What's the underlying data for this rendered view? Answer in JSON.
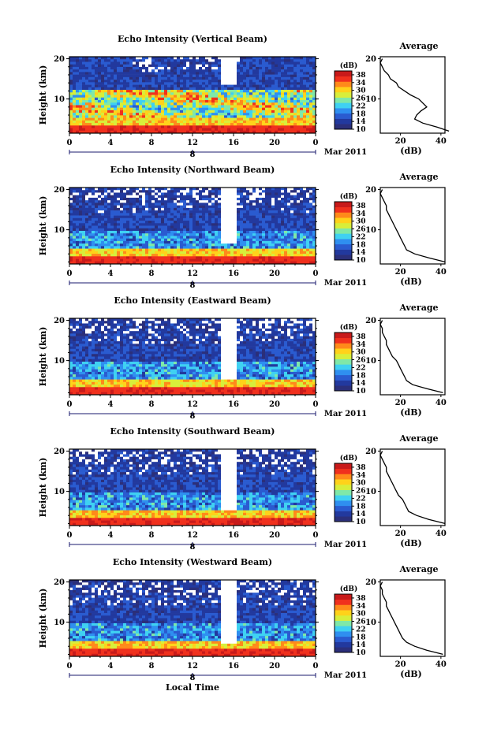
{
  "colors": {
    "colormap": [
      "#2b2f7a",
      "#22399e",
      "#2a5bd0",
      "#2f8ff0",
      "#3fd1f2",
      "#7fe8a8",
      "#d8ee3a",
      "#ffd21a",
      "#ff8a1a",
      "#f0301d",
      "#c81a1a"
    ],
    "missing": "#ffffff"
  },
  "chart_data": [
    {
      "type": "heatmap",
      "title": "Echo Intensity (Vertical Beam)",
      "ylabel": "Height (km)",
      "x_ticks": [
        "0",
        "4",
        "8",
        "12",
        "16",
        "20",
        "0"
      ],
      "xlim": [
        0,
        24
      ],
      "y_ticks": [
        "10",
        "20"
      ],
      "ylim": [
        1.5,
        20.5
      ],
      "date_tick": "8",
      "date_label": "Mar 2011",
      "colorbar": {
        "unit": "(dB)",
        "ticks": [
          "10",
          "14",
          "18",
          "22",
          "26",
          "30",
          "34",
          "38"
        ],
        "range": [
          10,
          40
        ]
      },
      "gap": {
        "x": [
          14.8,
          16.2
        ],
        "above": 13.5
      },
      "average": {
        "title": "Average",
        "xlabel": "(dB)",
        "x_ticks": [
          "20",
          "40"
        ],
        "xlim": [
          10,
          42
        ],
        "y_ticks": [
          "10",
          "20"
        ],
        "ylim": [
          1.5,
          20.5
        ],
        "points": [
          [
            44,
            2
          ],
          [
            38,
            3
          ],
          [
            31,
            4
          ],
          [
            27,
            5
          ],
          [
            28,
            6
          ],
          [
            30,
            7
          ],
          [
            33,
            8
          ],
          [
            31,
            9
          ],
          [
            29,
            10
          ],
          [
            25,
            11
          ],
          [
            22,
            12
          ],
          [
            19,
            13
          ],
          [
            18,
            14
          ],
          [
            15,
            15
          ],
          [
            14,
            16
          ],
          [
            12,
            17
          ],
          [
            11,
            18
          ],
          [
            10,
            19
          ],
          [
            11,
            20
          ]
        ]
      }
    },
    {
      "type": "heatmap",
      "title": "Echo Intensity (Northward Beam)",
      "ylabel": "Height (km)",
      "x_ticks": [
        "0",
        "4",
        "8",
        "12",
        "16",
        "20",
        "0"
      ],
      "xlim": [
        0,
        24
      ],
      "y_ticks": [
        "10",
        "20"
      ],
      "ylim": [
        1.5,
        20.5
      ],
      "date_tick": "8",
      "date_label": "Mar 2011",
      "colorbar": {
        "unit": "(dB)",
        "ticks": [
          "10",
          "14",
          "18",
          "22",
          "26",
          "30",
          "34",
          "38"
        ],
        "range": [
          10,
          40
        ]
      },
      "gap": {
        "x": [
          14.8,
          16.3
        ],
        "above": 6.5
      },
      "average": {
        "title": "Average",
        "xlabel": "(dB)",
        "x_ticks": [
          "20",
          "40"
        ],
        "xlim": [
          10,
          42
        ],
        "y_ticks": [
          "10",
          "20"
        ],
        "ylim": [
          1.5,
          20.5
        ],
        "points": [
          [
            42,
            2
          ],
          [
            34,
            3
          ],
          [
            27,
            4
          ],
          [
            23,
            5
          ],
          [
            22,
            6
          ],
          [
            21,
            7
          ],
          [
            20,
            8
          ],
          [
            19,
            9
          ],
          [
            18,
            10
          ],
          [
            17,
            11
          ],
          [
            16,
            12
          ],
          [
            15,
            13
          ],
          [
            14,
            14
          ],
          [
            13,
            15
          ],
          [
            13,
            16
          ],
          [
            12,
            17
          ],
          [
            11,
            18
          ],
          [
            10,
            19
          ],
          [
            11,
            20
          ]
        ]
      }
    },
    {
      "type": "heatmap",
      "title": "Echo Intensity (Eastward Beam)",
      "ylabel": "Height (km)",
      "x_ticks": [
        "0",
        "4",
        "8",
        "12",
        "16",
        "20",
        "0"
      ],
      "xlim": [
        0,
        24
      ],
      "y_ticks": [
        "10",
        "20"
      ],
      "ylim": [
        1.5,
        20.5
      ],
      "date_tick": "8",
      "date_label": "Mar 2011",
      "colorbar": {
        "unit": "(dB)",
        "ticks": [
          "10",
          "14",
          "18",
          "22",
          "26",
          "30",
          "34",
          "38"
        ],
        "range": [
          10,
          40
        ]
      },
      "gap": {
        "x": [
          14.9,
          16.4
        ],
        "above": 5.0
      },
      "average": {
        "title": "Average",
        "xlabel": "(dB)",
        "x_ticks": [
          "20",
          "40"
        ],
        "xlim": [
          10,
          42
        ],
        "y_ticks": [
          "10",
          "20"
        ],
        "ylim": [
          1.5,
          20.5
        ],
        "points": [
          [
            41,
            2
          ],
          [
            33,
            3
          ],
          [
            26,
            4
          ],
          [
            23,
            5
          ],
          [
            22,
            6
          ],
          [
            21,
            7
          ],
          [
            20,
            8
          ],
          [
            19,
            9
          ],
          [
            18,
            10
          ],
          [
            16,
            11
          ],
          [
            15,
            12
          ],
          [
            14,
            13
          ],
          [
            13,
            14
          ],
          [
            13,
            15
          ],
          [
            12,
            16
          ],
          [
            11,
            17
          ],
          [
            11,
            18
          ],
          [
            10,
            19
          ],
          [
            11,
            20
          ]
        ]
      }
    },
    {
      "type": "heatmap",
      "title": "Echo Intensity (Southward Beam)",
      "ylabel": "Height (km)",
      "x_ticks": [
        "0",
        "4",
        "8",
        "12",
        "16",
        "20",
        "0"
      ],
      "xlim": [
        0,
        24
      ],
      "y_ticks": [
        "10",
        "20"
      ],
      "ylim": [
        1.5,
        20.5
      ],
      "date_tick": "8",
      "date_label": "Mar 2011",
      "colorbar": {
        "unit": "(dB)",
        "ticks": [
          "10",
          "14",
          "18",
          "22",
          "26",
          "30",
          "34",
          "38"
        ],
        "range": [
          10,
          40
        ]
      },
      "gap": {
        "x": [
          14.8,
          16.4
        ],
        "above": 5.5
      },
      "average": {
        "title": "Average",
        "xlabel": "(dB)",
        "x_ticks": [
          "20",
          "40"
        ],
        "xlim": [
          10,
          42
        ],
        "y_ticks": [
          "10",
          "20"
        ],
        "ylim": [
          1.5,
          20.5
        ],
        "points": [
          [
            42,
            2
          ],
          [
            34,
            3
          ],
          [
            28,
            4
          ],
          [
            24,
            5
          ],
          [
            23,
            6
          ],
          [
            22,
            7
          ],
          [
            21,
            8
          ],
          [
            19,
            9
          ],
          [
            18,
            10
          ],
          [
            17,
            11
          ],
          [
            16,
            12
          ],
          [
            15,
            13
          ],
          [
            14,
            14
          ],
          [
            13,
            15
          ],
          [
            13,
            16
          ],
          [
            12,
            17
          ],
          [
            11,
            18
          ],
          [
            10,
            19
          ],
          [
            11,
            20
          ]
        ]
      }
    },
    {
      "type": "heatmap",
      "title": "Echo Intensity (Westward Beam)",
      "ylabel": "Height (km)",
      "xlabel": "Local Time",
      "x_ticks": [
        "0",
        "4",
        "8",
        "12",
        "16",
        "20",
        "0"
      ],
      "xlim": [
        0,
        24
      ],
      "y_ticks": [
        "10",
        "20"
      ],
      "ylim": [
        1.5,
        20.5
      ],
      "date_tick": "8",
      "date_label": "Mar 2011",
      "colorbar": {
        "unit": "(dB)",
        "ticks": [
          "10",
          "14",
          "18",
          "22",
          "26",
          "30",
          "34",
          "38"
        ],
        "range": [
          10,
          40
        ]
      },
      "gap": {
        "x": [
          14.9,
          16.3
        ],
        "above": 4.5
      },
      "average": {
        "title": "Average",
        "xlabel": "(dB)",
        "x_ticks": [
          "20",
          "40"
        ],
        "xlim": [
          10,
          42
        ],
        "y_ticks": [
          "10",
          "20"
        ],
        "ylim": [
          1.5,
          20.5
        ],
        "points": [
          [
            41,
            2
          ],
          [
            33,
            3
          ],
          [
            27,
            4
          ],
          [
            23,
            5
          ],
          [
            21,
            6
          ],
          [
            20,
            7
          ],
          [
            19,
            8
          ],
          [
            18,
            9
          ],
          [
            17,
            10
          ],
          [
            16,
            11
          ],
          [
            15,
            12
          ],
          [
            14,
            13
          ],
          [
            13,
            14
          ],
          [
            13,
            15
          ],
          [
            12,
            16
          ],
          [
            11,
            17
          ],
          [
            11,
            18
          ],
          [
            10,
            19
          ],
          [
            11,
            20
          ]
        ]
      }
    }
  ]
}
